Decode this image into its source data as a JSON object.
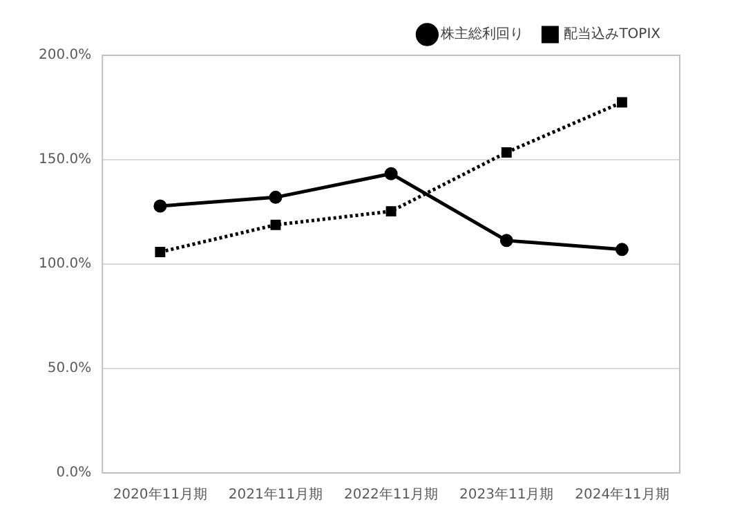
{
  "chart_data": {
    "type": "line",
    "categories": [
      "2020年11月期",
      "2021年11月期",
      "2022年11月期",
      "2023年11月期",
      "2024年11月期"
    ],
    "series": [
      {
        "name": "株主総利回り",
        "color": "#000000",
        "values": [
          127.8,
          132.0,
          143.3,
          111.3,
          107.0
        ],
        "marker": "circle",
        "line_style": "solid"
      },
      {
        "name": "配当込みTOPIX",
        "color": "#000000",
        "values": [
          105.8,
          118.8,
          125.3,
          153.5,
          177.5
        ],
        "marker": "square",
        "line_style": "dotted"
      }
    ],
    "ylim": [
      0,
      200
    ],
    "yticks": [
      {
        "value": 0,
        "label": "0.0%"
      },
      {
        "value": 50,
        "label": "50.0%"
      },
      {
        "value": 100,
        "label": "100.0%"
      },
      {
        "value": 150,
        "label": "150.0%"
      },
      {
        "value": 200,
        "label": "200.0%"
      }
    ],
    "grid": "y",
    "legend": "top right"
  }
}
